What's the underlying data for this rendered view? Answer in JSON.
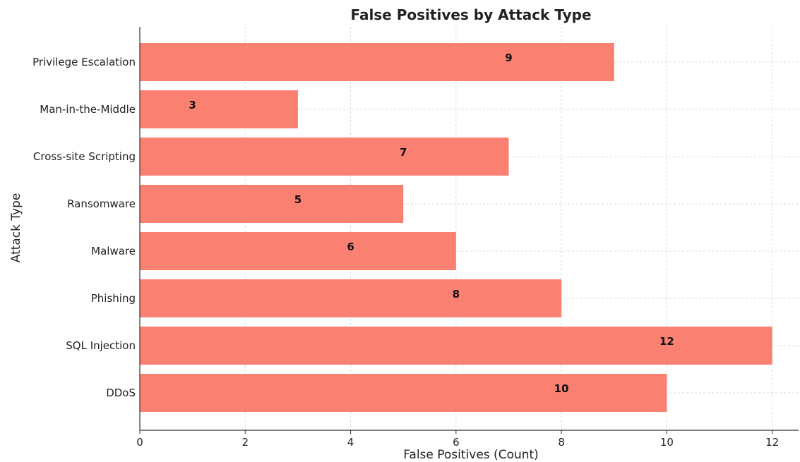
{
  "chart_data": {
    "type": "bar",
    "orientation": "horizontal",
    "title": "False Positives by Attack Type",
    "xlabel": "False Positives (Count)",
    "ylabel": "Attack Type",
    "categories": [
      "DDoS",
      "SQL Injection",
      "Phishing",
      "Malware",
      "Ransomware",
      "Cross-site Scripting",
      "Man-in-the-Middle",
      "Privilege Escalation"
    ],
    "values": [
      10,
      12,
      8,
      6,
      5,
      7,
      3,
      9
    ],
    "data_labels": [
      "10",
      "12",
      "8",
      "6",
      "5",
      "7",
      "3",
      "9"
    ],
    "xlim": [
      0,
      12.5
    ],
    "xticks": [
      0,
      2,
      4,
      6,
      8,
      10,
      12
    ],
    "xtick_labels": [
      "0",
      "2",
      "4",
      "6",
      "8",
      "10",
      "12"
    ],
    "grid": true,
    "bar_color": "#fa8072"
  }
}
